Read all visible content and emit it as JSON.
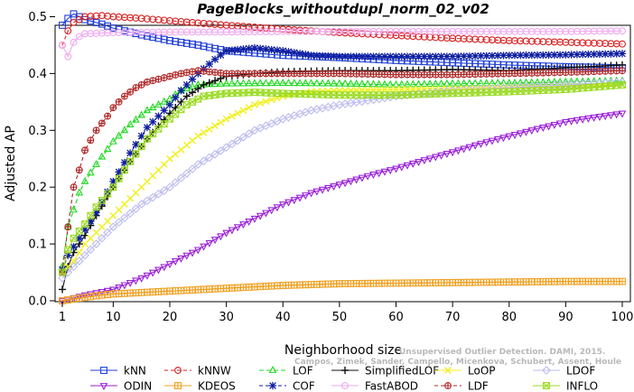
{
  "chart_data": {
    "type": "line",
    "title": "PageBlocks_withoutdupl_norm_02_v02",
    "xlabel": "Neighborhood size",
    "ylabel": "Adjusted AP",
    "xlim": [
      1,
      100
    ],
    "ylim": [
      0,
      0.52
    ],
    "xticks": [
      1,
      10,
      20,
      30,
      40,
      50,
      60,
      70,
      80,
      90,
      100
    ],
    "yticks": [
      0.0,
      0.1,
      0.2,
      0.3,
      0.4,
      0.5
    ],
    "grid": false,
    "legend_position": "bottom",
    "watermark": [
      "Campos, Zimek, Sander, Campello, Micenkova, Schubert, Assent, Houle",
      "Unsupervised Outlier Detection. DAMI, 2015."
    ],
    "series": [
      {
        "name": "kNN",
        "color": "#1f3fd8",
        "marker": "square",
        "dash": "",
        "points": [
          [
            1,
            0.485
          ],
          [
            2,
            0.497
          ],
          [
            3,
            0.505
          ],
          [
            4,
            0.5
          ],
          [
            5,
            0.495
          ],
          [
            8,
            0.487
          ],
          [
            10,
            0.48
          ],
          [
            15,
            0.468
          ],
          [
            20,
            0.458
          ],
          [
            25,
            0.45
          ],
          [
            30,
            0.44
          ],
          [
            40,
            0.432
          ],
          [
            50,
            0.428
          ],
          [
            60,
            0.423
          ],
          [
            70,
            0.419
          ],
          [
            80,
            0.415
          ],
          [
            90,
            0.412
          ],
          [
            100,
            0.41
          ]
        ]
      },
      {
        "name": "kNNW",
        "color": "#d82020",
        "marker": "circle",
        "dash": "4,3",
        "points": [
          [
            1,
            0.45
          ],
          [
            2,
            0.475
          ],
          [
            3,
            0.49
          ],
          [
            5,
            0.5
          ],
          [
            8,
            0.502
          ],
          [
            10,
            0.5
          ],
          [
            15,
            0.497
          ],
          [
            20,
            0.493
          ],
          [
            30,
            0.485
          ],
          [
            40,
            0.478
          ],
          [
            50,
            0.472
          ],
          [
            60,
            0.467
          ],
          [
            70,
            0.462
          ],
          [
            80,
            0.458
          ],
          [
            90,
            0.455
          ],
          [
            100,
            0.452
          ]
        ]
      },
      {
        "name": "LOF",
        "color": "#1fd81f",
        "marker": "triangle",
        "dash": "5,3",
        "points": [
          [
            1,
            0.06
          ],
          [
            2,
            0.13
          ],
          [
            3,
            0.16
          ],
          [
            4,
            0.19
          ],
          [
            5,
            0.21
          ],
          [
            7,
            0.24
          ],
          [
            10,
            0.28
          ],
          [
            13,
            0.31
          ],
          [
            16,
            0.335
          ],
          [
            20,
            0.355
          ],
          [
            22,
            0.37
          ],
          [
            25,
            0.38
          ],
          [
            30,
            0.382
          ],
          [
            40,
            0.383
          ],
          [
            50,
            0.382
          ],
          [
            60,
            0.38
          ],
          [
            70,
            0.382
          ],
          [
            80,
            0.383
          ],
          [
            90,
            0.385
          ],
          [
            100,
            0.387
          ]
        ]
      },
      {
        "name": "SimplifiedLOF",
        "color": "#111111",
        "marker": "plus",
        "dash": "",
        "points": [
          [
            1,
            0.02
          ],
          [
            2,
            0.06
          ],
          [
            3,
            0.085
          ],
          [
            4,
            0.1
          ],
          [
            5,
            0.115
          ],
          [
            7,
            0.15
          ],
          [
            10,
            0.2
          ],
          [
            13,
            0.245
          ],
          [
            16,
            0.285
          ],
          [
            20,
            0.33
          ],
          [
            23,
            0.36
          ],
          [
            26,
            0.38
          ],
          [
            30,
            0.395
          ],
          [
            35,
            0.4
          ],
          [
            40,
            0.403
          ],
          [
            50,
            0.405
          ],
          [
            60,
            0.405
          ],
          [
            70,
            0.407
          ],
          [
            80,
            0.405
          ],
          [
            90,
            0.41
          ],
          [
            100,
            0.415
          ]
        ]
      },
      {
        "name": "LoOP",
        "color": "#f0f020",
        "marker": "x",
        "dash": "",
        "points": [
          [
            1,
            0.05
          ],
          [
            3,
            0.07
          ],
          [
            5,
            0.1
          ],
          [
            7,
            0.12
          ],
          [
            10,
            0.15
          ],
          [
            15,
            0.2
          ],
          [
            20,
            0.25
          ],
          [
            25,
            0.29
          ],
          [
            30,
            0.32
          ],
          [
            35,
            0.345
          ],
          [
            40,
            0.36
          ],
          [
            45,
            0.368
          ],
          [
            50,
            0.37
          ],
          [
            60,
            0.372
          ],
          [
            70,
            0.373
          ],
          [
            80,
            0.375
          ],
          [
            90,
            0.378
          ],
          [
            100,
            0.38
          ]
        ]
      },
      {
        "name": "LDOF",
        "color": "#bcbcee",
        "marker": "diamond",
        "dash": "",
        "points": [
          [
            1,
            0.04
          ],
          [
            3,
            0.06
          ],
          [
            5,
            0.08
          ],
          [
            7,
            0.1
          ],
          [
            10,
            0.13
          ],
          [
            15,
            0.17
          ],
          [
            20,
            0.2
          ],
          [
            25,
            0.24
          ],
          [
            30,
            0.27
          ],
          [
            35,
            0.3
          ],
          [
            40,
            0.32
          ],
          [
            45,
            0.335
          ],
          [
            50,
            0.345
          ],
          [
            60,
            0.36
          ],
          [
            70,
            0.37
          ],
          [
            80,
            0.375
          ],
          [
            90,
            0.38
          ],
          [
            100,
            0.385
          ]
        ]
      },
      {
        "name": "ODIN",
        "color": "#9a20d8",
        "marker": "invtriangle",
        "dash": "",
        "points": [
          [
            1,
            0.0
          ],
          [
            3,
            0.005
          ],
          [
            5,
            0.01
          ],
          [
            10,
            0.02
          ],
          [
            15,
            0.04
          ],
          [
            20,
            0.065
          ],
          [
            25,
            0.09
          ],
          [
            30,
            0.12
          ],
          [
            35,
            0.145
          ],
          [
            40,
            0.17
          ],
          [
            45,
            0.19
          ],
          [
            50,
            0.205
          ],
          [
            55,
            0.22
          ],
          [
            60,
            0.233
          ],
          [
            65,
            0.248
          ],
          [
            70,
            0.262
          ],
          [
            75,
            0.277
          ],
          [
            80,
            0.29
          ],
          [
            85,
            0.303
          ],
          [
            90,
            0.315
          ],
          [
            95,
            0.323
          ],
          [
            100,
            0.33
          ]
        ]
      },
      {
        "name": "KDEOS",
        "color": "#f0a020",
        "marker": "boxed",
        "dash": "",
        "points": [
          [
            1,
            0.0
          ],
          [
            3,
            0.003
          ],
          [
            5,
            0.006
          ],
          [
            8,
            0.01
          ],
          [
            10,
            0.012
          ],
          [
            20,
            0.017
          ],
          [
            30,
            0.022
          ],
          [
            40,
            0.027
          ],
          [
            50,
            0.03
          ],
          [
            60,
            0.031
          ],
          [
            70,
            0.032
          ],
          [
            80,
            0.033
          ],
          [
            90,
            0.034
          ],
          [
            100,
            0.034
          ]
        ]
      },
      {
        "name": "COF",
        "color": "#0f1fa0",
        "marker": "asterisk",
        "dash": "4,3",
        "points": [
          [
            1,
            0.055
          ],
          [
            2,
            0.08
          ],
          [
            3,
            0.095
          ],
          [
            4,
            0.11
          ],
          [
            5,
            0.125
          ],
          [
            7,
            0.155
          ],
          [
            10,
            0.21
          ],
          [
            13,
            0.26
          ],
          [
            16,
            0.305
          ],
          [
            20,
            0.345
          ],
          [
            22,
            0.37
          ],
          [
            25,
            0.4
          ],
          [
            28,
            0.425
          ],
          [
            30,
            0.44
          ],
          [
            35,
            0.445
          ],
          [
            40,
            0.44
          ],
          [
            45,
            0.432
          ],
          [
            50,
            0.43
          ],
          [
            60,
            0.43
          ],
          [
            70,
            0.43
          ],
          [
            80,
            0.432
          ],
          [
            90,
            0.433
          ],
          [
            100,
            0.435
          ]
        ]
      },
      {
        "name": "FastABOD",
        "color": "#f0a8f0",
        "marker": "circle",
        "dash": "",
        "points": [
          [
            1,
            0.45
          ],
          [
            2,
            0.43
          ],
          [
            3,
            0.455
          ],
          [
            4,
            0.465
          ],
          [
            5,
            0.47
          ],
          [
            10,
            0.472
          ],
          [
            20,
            0.473
          ],
          [
            30,
            0.473
          ],
          [
            40,
            0.474
          ],
          [
            50,
            0.474
          ],
          [
            60,
            0.474
          ],
          [
            70,
            0.474
          ],
          [
            80,
            0.474
          ],
          [
            90,
            0.474
          ],
          [
            100,
            0.475
          ]
        ]
      },
      {
        "name": "LDF",
        "color": "#b02828",
        "marker": "circleplus",
        "dash": "4,3",
        "points": [
          [
            1,
            0.05
          ],
          [
            2,
            0.13
          ],
          [
            3,
            0.2
          ],
          [
            4,
            0.23
          ],
          [
            5,
            0.265
          ],
          [
            7,
            0.3
          ],
          [
            9,
            0.325
          ],
          [
            10,
            0.34
          ],
          [
            12,
            0.36
          ],
          [
            14,
            0.375
          ],
          [
            16,
            0.385
          ],
          [
            18,
            0.39
          ],
          [
            20,
            0.395
          ],
          [
            22,
            0.4
          ],
          [
            25,
            0.405
          ],
          [
            30,
            0.4
          ],
          [
            40,
            0.4
          ],
          [
            50,
            0.4
          ],
          [
            60,
            0.398
          ],
          [
            70,
            0.398
          ],
          [
            80,
            0.4
          ],
          [
            90,
            0.402
          ],
          [
            100,
            0.405
          ]
        ]
      },
      {
        "name": "INFLO",
        "color": "#9ada20",
        "marker": "boxx",
        "dash": "",
        "points": [
          [
            1,
            0.05
          ],
          [
            2,
            0.09
          ],
          [
            3,
            0.11
          ],
          [
            5,
            0.135
          ],
          [
            7,
            0.165
          ],
          [
            10,
            0.2
          ],
          [
            13,
            0.245
          ],
          [
            16,
            0.285
          ],
          [
            20,
            0.32
          ],
          [
            23,
            0.345
          ],
          [
            26,
            0.36
          ],
          [
            30,
            0.365
          ],
          [
            35,
            0.367
          ],
          [
            40,
            0.365
          ],
          [
            50,
            0.362
          ],
          [
            60,
            0.362
          ],
          [
            70,
            0.365
          ],
          [
            80,
            0.368
          ],
          [
            90,
            0.372
          ],
          [
            100,
            0.38
          ]
        ]
      }
    ]
  }
}
